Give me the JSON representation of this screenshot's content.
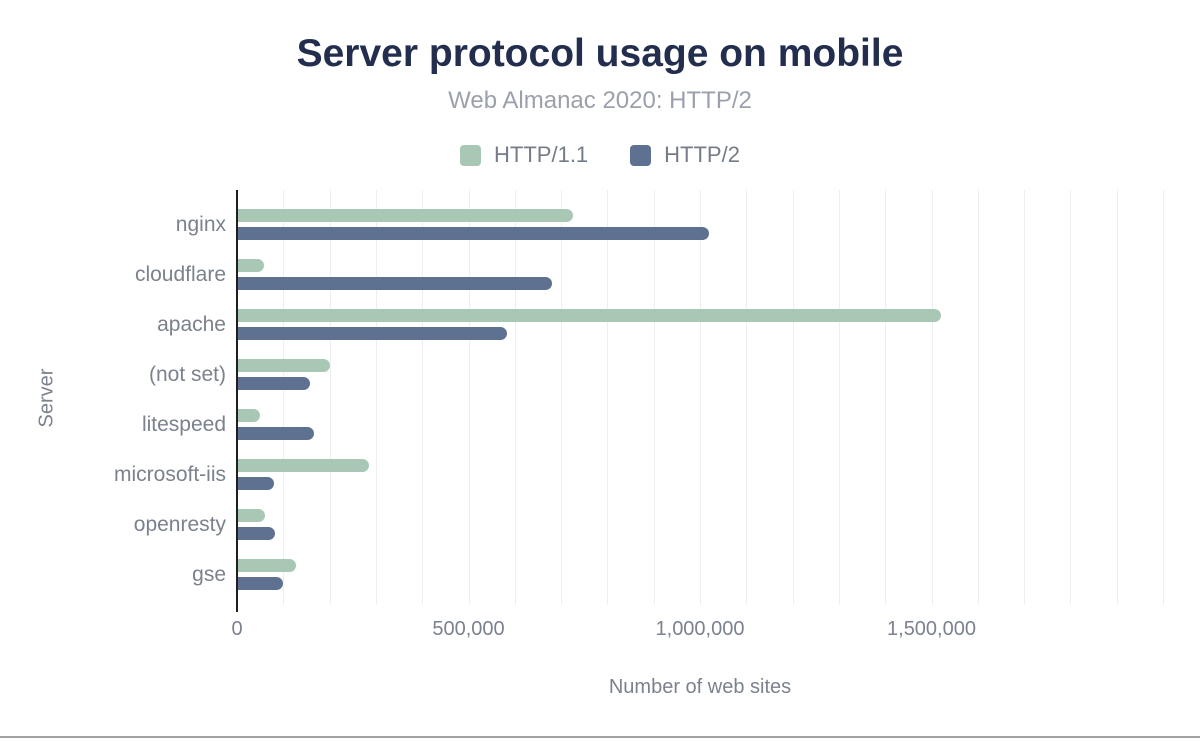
{
  "title": "Server protocol usage on mobile",
  "subtitle": "Web Almanac 2020: HTTP/2",
  "xlabel": "Number of web sites",
  "ylabel": "Server",
  "colors": {
    "title": "#232e4f",
    "subtitle": "#9ba1ac",
    "axis_text": "#7b828e",
    "legend_text": "#747c89",
    "axis_line": "#1f1f1f",
    "gridline": "#eeeef2",
    "http11_green": "#a8c8b5",
    "http2_blue": "#5f7190",
    "bottom_rule": "#a2a2a2"
  },
  "chart_data": {
    "type": "bar",
    "orientation": "horizontal",
    "title": "Server protocol usage on mobile",
    "subtitle": "Web Almanac 2020: HTTP/2",
    "xlabel": "Number of web sites",
    "ylabel": "Server",
    "categories": [
      "nginx",
      "cloudflare",
      "apache",
      "(not set)",
      "litespeed",
      "microsoft-iis",
      "openresty",
      "gse"
    ],
    "series": [
      {
        "name": "HTTP/1.1",
        "color": "#a8c8b5",
        "values": [
          725000,
          58000,
          1521000,
          200000,
          49000,
          285000,
          60000,
          128000
        ]
      },
      {
        "name": "HTTP/2",
        "color": "#5f7190",
        "values": [
          1020000,
          680000,
          582000,
          158000,
          167000,
          79000,
          81000,
          100000
        ]
      }
    ],
    "xlim": [
      0,
      2000000
    ],
    "gridline_step": 100000,
    "x_ticks": [
      {
        "value": 0,
        "label": "0"
      },
      {
        "value": 500000,
        "label": "500,000"
      },
      {
        "value": 1000000,
        "label": "1,000,000"
      },
      {
        "value": 1500000,
        "label": "1,500,000"
      }
    ],
    "grid": true,
    "legend_position": "top"
  }
}
